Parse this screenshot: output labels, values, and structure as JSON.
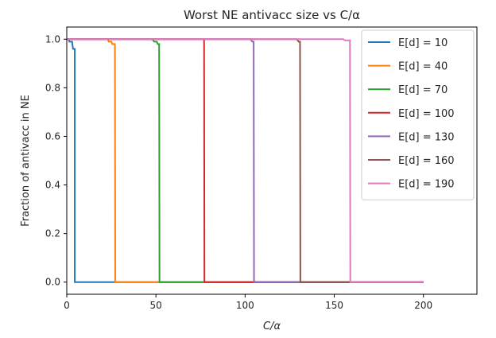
{
  "chart_data": {
    "type": "line",
    "title": "Worst NE antivacc size vs C/α",
    "xlabel": "C/α",
    "ylabel": "Fraction of antivacc in NE",
    "xlim": [
      0,
      230
    ],
    "ylim": [
      -0.05,
      1.05
    ],
    "x_ticks": [
      0,
      50,
      100,
      150,
      200
    ],
    "y_ticks": [
      0.0,
      0.2,
      0.4,
      0.6,
      0.8,
      1.0
    ],
    "x_tick_labels": [
      "0",
      "50",
      "100",
      "150",
      "200"
    ],
    "y_tick_labels": [
      "0.0",
      "0.2",
      "0.4",
      "0.6",
      "0.8",
      "1.0"
    ],
    "grid": false,
    "legend_position": "top-right",
    "series": [
      {
        "name": "E[d] = 10",
        "color": "#1f77b4",
        "points": [
          [
            0,
            1.0
          ],
          [
            1,
            1.0
          ],
          [
            1.5,
            0.99
          ],
          [
            3,
            0.99
          ],
          [
            3.5,
            0.96
          ],
          [
            4.5,
            0.96
          ],
          [
            4.5,
            0.0
          ],
          [
            200,
            0.0
          ]
        ]
      },
      {
        "name": "E[d] = 40",
        "color": "#ff7f0e",
        "points": [
          [
            0,
            1.0
          ],
          [
            23,
            1.0
          ],
          [
            23.5,
            0.99
          ],
          [
            25,
            0.99
          ],
          [
            25.5,
            0.98
          ],
          [
            27,
            0.98
          ],
          [
            27.2,
            0.0
          ],
          [
            200,
            0.0
          ]
        ]
      },
      {
        "name": "E[d] = 70",
        "color": "#2ca02c",
        "points": [
          [
            0,
            1.0
          ],
          [
            48,
            1.0
          ],
          [
            49,
            0.99
          ],
          [
            50.5,
            0.99
          ],
          [
            51,
            0.98
          ],
          [
            51.8,
            0.98
          ],
          [
            52,
            0.0
          ],
          [
            200,
            0.0
          ]
        ]
      },
      {
        "name": "E[d] = 100",
        "color": "#d62728",
        "points": [
          [
            0,
            1.0
          ],
          [
            77,
            1.0
          ],
          [
            77.2,
            0.0
          ],
          [
            200,
            0.0
          ]
        ]
      },
      {
        "name": "E[d] = 130",
        "color": "#9467bd",
        "points": [
          [
            0,
            1.0
          ],
          [
            103,
            1.0
          ],
          [
            104,
            0.99
          ],
          [
            104.8,
            0.99
          ],
          [
            105,
            0.0
          ],
          [
            200,
            0.0
          ]
        ]
      },
      {
        "name": "E[d] = 160",
        "color": "#8c564b",
        "points": [
          [
            0,
            1.0
          ],
          [
            129,
            1.0
          ],
          [
            130,
            0.99
          ],
          [
            130.8,
            0.99
          ],
          [
            131,
            0.0
          ],
          [
            200,
            0.0
          ]
        ]
      },
      {
        "name": "E[d] = 190",
        "color": "#e377c2",
        "points": [
          [
            0,
            1.0
          ],
          [
            155,
            1.0
          ],
          [
            156,
            0.995
          ],
          [
            158.8,
            0.995
          ],
          [
            159,
            0.0
          ],
          [
            200,
            0.0
          ]
        ]
      }
    ]
  }
}
